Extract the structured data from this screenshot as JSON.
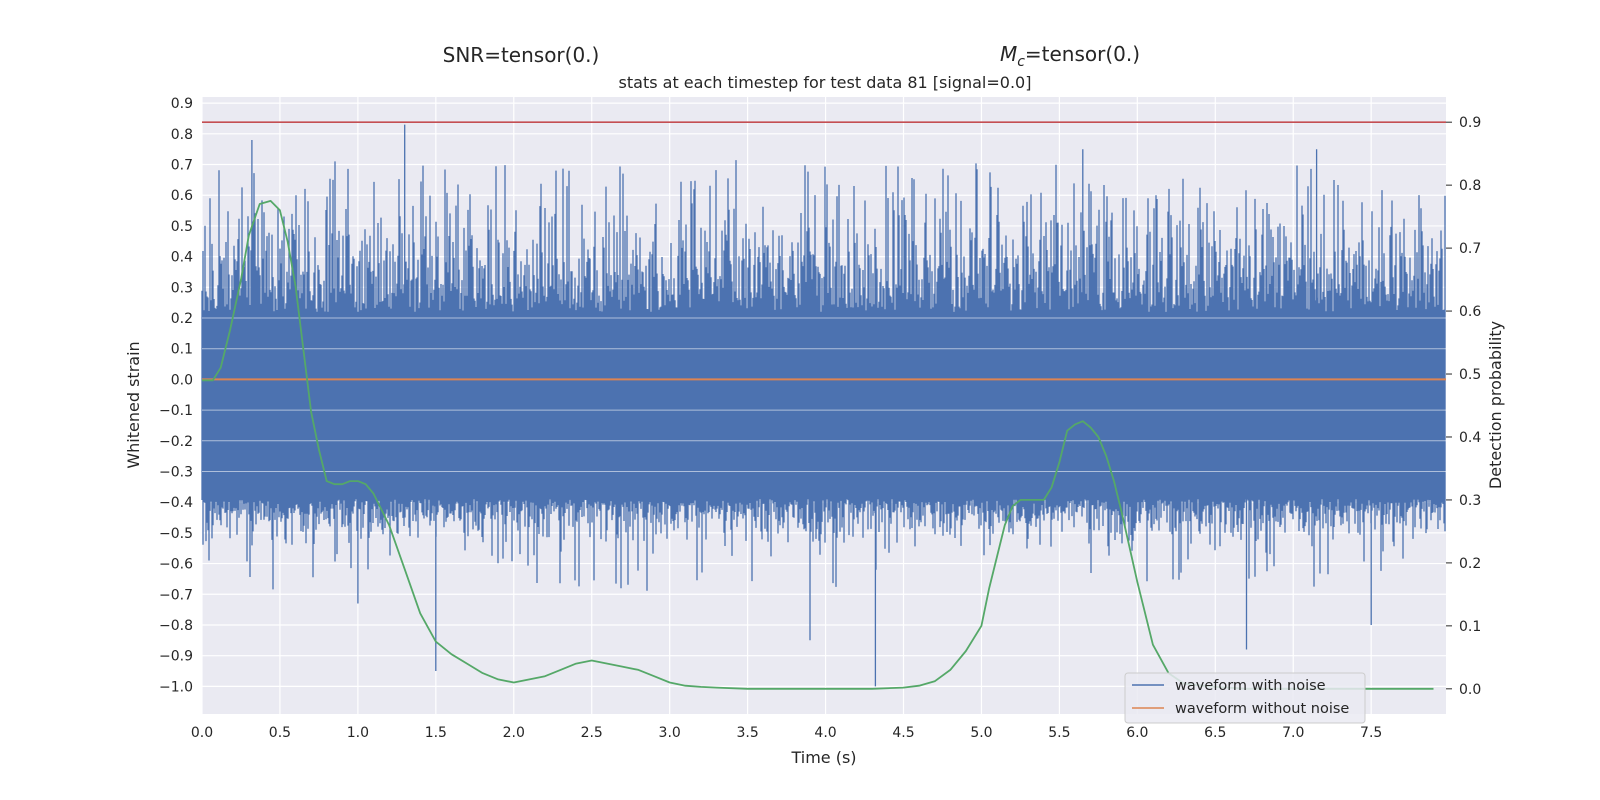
{
  "header": {
    "snr_label": "SNR=tensor(0.)",
    "mc_symbol": "M",
    "mc_subscript": "c",
    "mc_value": "=tensor(0.)",
    "subtitle": "stats at each timestep for test data 81 [signal=0.0]"
  },
  "chart_data": {
    "type": "line",
    "xlabel": "Time (s)",
    "ylabel": "Whitened strain",
    "y2label": "Detection probability",
    "xlim": [
      0.0,
      7.98
    ],
    "ylim": [
      -1.09,
      0.92
    ],
    "y2lim": [
      -0.04,
      0.94
    ],
    "x_ticks": [
      "0.0",
      "0.5",
      "1.0",
      "1.5",
      "2.0",
      "2.5",
      "3.0",
      "3.5",
      "4.0",
      "4.5",
      "5.0",
      "5.5",
      "6.0",
      "6.5",
      "7.0",
      "7.5"
    ],
    "y_ticks": [
      "0.9",
      "0.8",
      "0.7",
      "0.6",
      "0.5",
      "0.4",
      "0.3",
      "0.2",
      "0.1",
      "0.0",
      "−0.1",
      "−0.2",
      "−0.3",
      "−0.4",
      "−0.5",
      "−0.6",
      "−0.7",
      "−0.8",
      "−0.9",
      "−1.0"
    ],
    "y2_ticks": [
      "0.9",
      "0.8",
      "0.7",
      "0.6",
      "0.5",
      "0.4",
      "0.3",
      "0.2",
      "0.1",
      "0.0"
    ],
    "threshold": 0.9,
    "grid": true,
    "legend_position": "lower-right",
    "colors": {
      "noise": "#4c72b0",
      "clean": "#dd8452",
      "prob": "#55a868",
      "threshold": "#c44e52",
      "axes_bg": "#eaeaf2",
      "grid": "#ffffff"
    },
    "series": [
      {
        "name": "waveform with noise",
        "note": "dense whitened noise trace; envelope approx ±0.45 with spikes",
        "x_range": [
          0.0,
          7.98
        ],
        "y_range": [
          -1.0,
          0.83
        ]
      },
      {
        "name": "waveform without noise",
        "x": [
          0.0,
          7.98
        ],
        "y": [
          0.0,
          0.0
        ]
      },
      {
        "name": "detection probability",
        "axis": "right",
        "x": [
          0.0,
          0.07,
          0.12,
          0.18,
          0.25,
          0.3,
          0.37,
          0.44,
          0.5,
          0.55,
          0.6,
          0.65,
          0.7,
          0.75,
          0.8,
          0.85,
          0.9,
          0.95,
          1.0,
          1.05,
          1.1,
          1.2,
          1.3,
          1.4,
          1.5,
          1.6,
          1.7,
          1.8,
          1.9,
          2.0,
          2.1,
          2.2,
          2.3,
          2.4,
          2.5,
          2.6,
          2.7,
          2.8,
          2.9,
          3.0,
          3.1,
          3.2,
          3.3,
          3.5,
          3.8,
          4.0,
          4.3,
          4.5,
          4.6,
          4.7,
          4.8,
          4.9,
          5.0,
          5.05,
          5.1,
          5.15,
          5.2,
          5.25,
          5.3,
          5.35,
          5.4,
          5.45,
          5.5,
          5.55,
          5.6,
          5.65,
          5.7,
          5.75,
          5.8,
          5.85,
          5.9,
          6.0,
          6.1,
          6.2,
          6.3,
          6.5,
          6.7,
          7.0,
          7.3,
          7.5,
          7.9
        ],
        "y": [
          0.49,
          0.49,
          0.51,
          0.57,
          0.65,
          0.72,
          0.77,
          0.775,
          0.76,
          0.71,
          0.64,
          0.54,
          0.44,
          0.38,
          0.33,
          0.325,
          0.325,
          0.33,
          0.33,
          0.325,
          0.31,
          0.26,
          0.19,
          0.12,
          0.075,
          0.055,
          0.04,
          0.025,
          0.015,
          0.01,
          0.015,
          0.02,
          0.03,
          0.04,
          0.045,
          0.04,
          0.035,
          0.03,
          0.02,
          0.01,
          0.005,
          0.003,
          0.002,
          0.0,
          0.0,
          0.0,
          0.0,
          0.002,
          0.005,
          0.012,
          0.03,
          0.06,
          0.1,
          0.16,
          0.21,
          0.26,
          0.29,
          0.3,
          0.3,
          0.3,
          0.3,
          0.32,
          0.36,
          0.41,
          0.42,
          0.425,
          0.415,
          0.4,
          0.37,
          0.33,
          0.28,
          0.17,
          0.07,
          0.025,
          0.008,
          0.003,
          0.0,
          0.0,
          0.0,
          0.0,
          0.0
        ]
      }
    ]
  },
  "legend": [
    {
      "label": "waveform with noise",
      "color": "#4c72b0"
    },
    {
      "label": "waveform without noise",
      "color": "#dd8452"
    }
  ]
}
